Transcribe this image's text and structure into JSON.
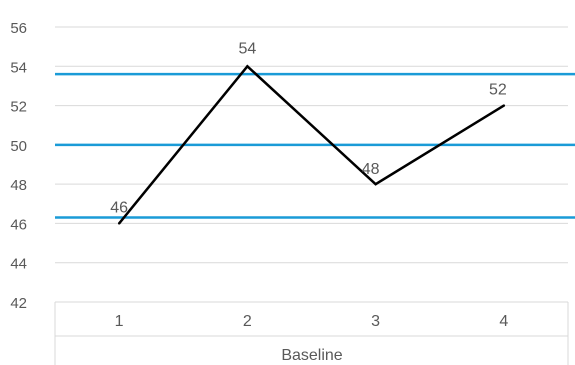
{
  "chart_data": {
    "type": "line",
    "title": "",
    "xlabel": "Baseline",
    "ylabel": "",
    "categories": [
      "1",
      "2",
      "3",
      "4"
    ],
    "ylim": [
      42,
      56
    ],
    "ytick_step": 2,
    "grid": true,
    "series": [
      {
        "values": [
          46,
          54,
          48,
          52
        ],
        "color": "#000000"
      }
    ],
    "data_labels": [
      "46",
      "54",
      "48",
      "52"
    ],
    "reference_lines": [
      {
        "value": 53.6,
        "color": "#1a9bd7"
      },
      {
        "value": 50.0,
        "color": "#1a9bd7"
      },
      {
        "value": 46.3,
        "color": "#1a9bd7"
      }
    ],
    "colors": {
      "gridline": "#d9d9d9",
      "axis_text": "#595959"
    }
  }
}
